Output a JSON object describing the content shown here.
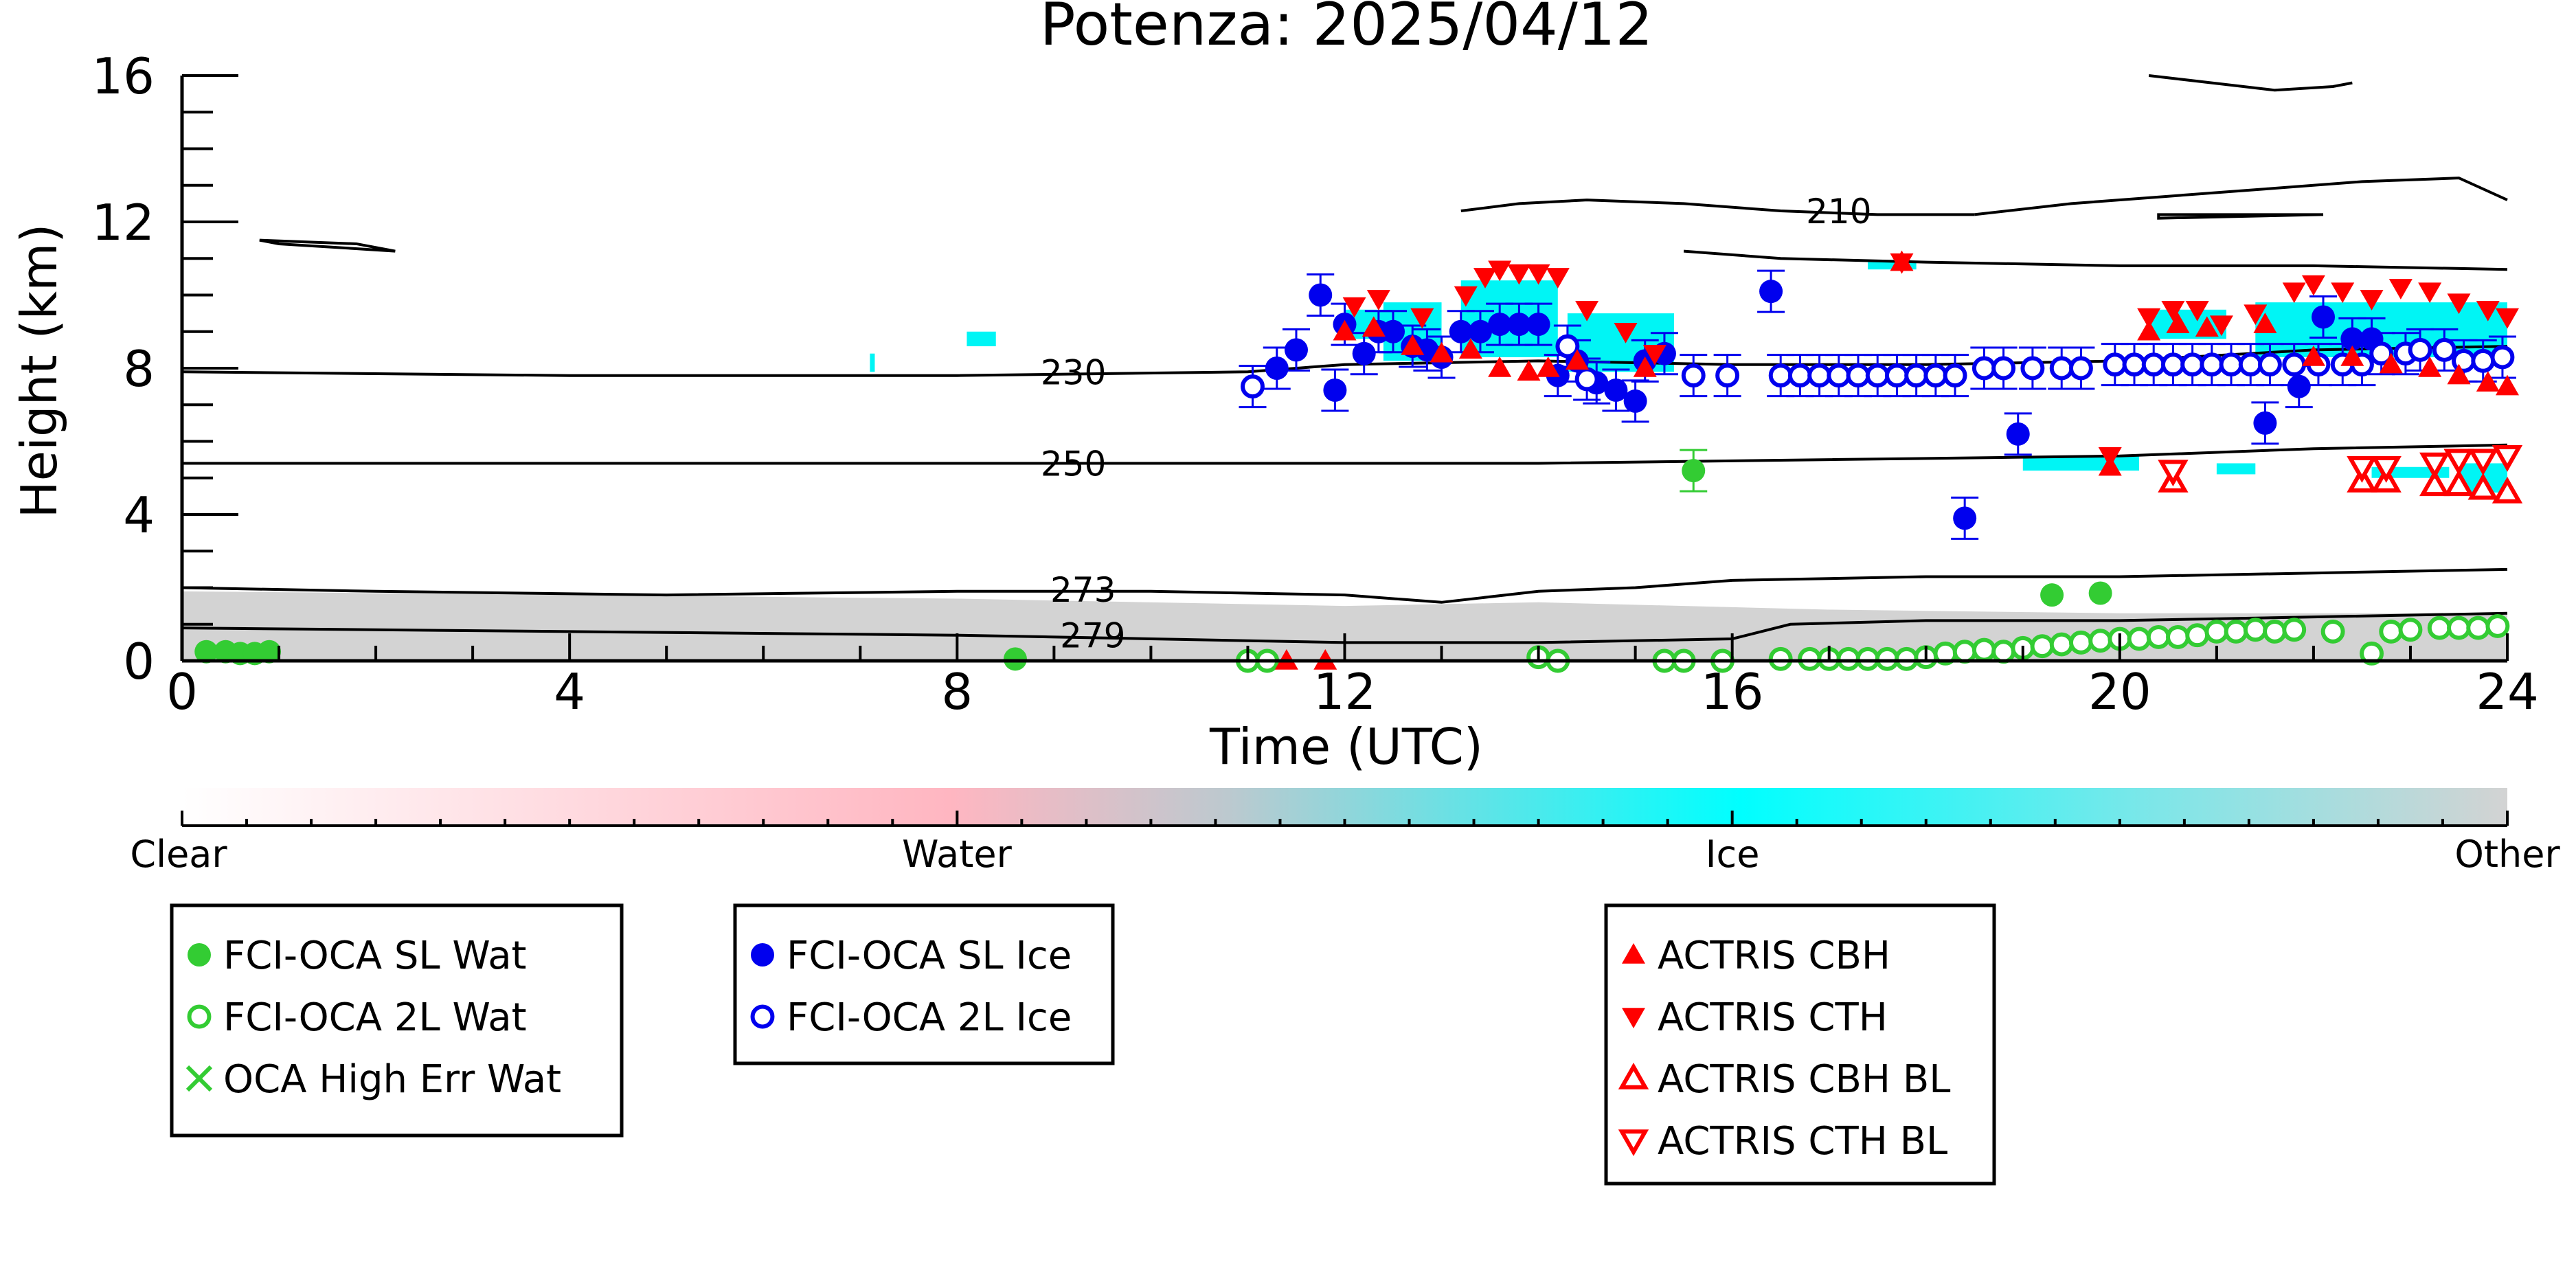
{
  "chart_data": {
    "type": "scatter",
    "title": "Potenza: 2025/04/12",
    "xlabel": "Time (UTC)",
    "ylabel": "Height (km)",
    "xlim": [
      0,
      24
    ],
    "ylim": [
      0,
      16
    ],
    "xticks": [
      0,
      4,
      8,
      12,
      16,
      20,
      24
    ],
    "yticks": [
      0,
      4,
      8,
      12,
      16
    ],
    "colorbar": {
      "labels": [
        "Clear",
        "Water",
        "Ice",
        "Other"
      ],
      "colors": [
        "#ffffff",
        "#ffb6c1",
        "#00ffff",
        "#d3d3d3"
      ]
    },
    "contours": [
      {
        "label": "210",
        "points": [
          [
            18.5,
            12.2
          ],
          [
            19.5,
            12.5
          ],
          [
            20.5,
            12.7
          ],
          [
            21.5,
            12.9
          ],
          [
            22.5,
            13.1
          ],
          [
            23.5,
            13.2
          ],
          [
            24,
            12.6
          ]
        ]
      },
      {
        "label": "210",
        "points": [
          [
            13.2,
            12.3
          ],
          [
            13.8,
            12.5
          ],
          [
            14.5,
            12.6
          ],
          [
            15.5,
            12.5
          ],
          [
            16.5,
            12.3
          ],
          [
            17.5,
            12.2
          ],
          [
            18.5,
            12.2
          ]
        ]
      },
      {
        "label": "",
        "points": [
          [
            15.5,
            11.2
          ],
          [
            16.5,
            11.0
          ],
          [
            18,
            10.9
          ],
          [
            20,
            10.8
          ],
          [
            22,
            10.8
          ],
          [
            24,
            10.7
          ]
        ]
      },
      {
        "label": "230",
        "points": [
          [
            0,
            7.9
          ],
          [
            4,
            7.8
          ],
          [
            8,
            7.8
          ],
          [
            11,
            7.9
          ],
          [
            12,
            8.1
          ],
          [
            14,
            8.2
          ],
          [
            16,
            8.1
          ],
          [
            18,
            8.1
          ],
          [
            20,
            8.2
          ],
          [
            22,
            8.5
          ],
          [
            24,
            8.6
          ]
        ]
      },
      {
        "label": "250",
        "points": [
          [
            0,
            5.4
          ],
          [
            4,
            5.4
          ],
          [
            8,
            5.4
          ],
          [
            11,
            5.4
          ],
          [
            14,
            5.4
          ],
          [
            17,
            5.5
          ],
          [
            20,
            5.6
          ],
          [
            22,
            5.8
          ],
          [
            24,
            5.9
          ]
        ]
      },
      {
        "label": "273",
        "points": [
          [
            0,
            2.0
          ],
          [
            2,
            1.9
          ],
          [
            5,
            1.8
          ],
          [
            8,
            1.9
          ],
          [
            10,
            1.9
          ],
          [
            12,
            1.8
          ],
          [
            13,
            1.6
          ],
          [
            14,
            1.9
          ],
          [
            15,
            2.0
          ],
          [
            16,
            2.2
          ],
          [
            18,
            2.3
          ],
          [
            20,
            2.3
          ],
          [
            22,
            2.4
          ],
          [
            24,
            2.5
          ]
        ]
      },
      {
        "label": "279",
        "points": [
          [
            0,
            0.9
          ],
          [
            4,
            0.8
          ],
          [
            8,
            0.7
          ],
          [
            10,
            0.6
          ],
          [
            12,
            0.5
          ],
          [
            14,
            0.5
          ],
          [
            16,
            0.6
          ],
          [
            16.6,
            1.0
          ],
          [
            18,
            1.1
          ],
          [
            20,
            1.1
          ],
          [
            22,
            1.2
          ],
          [
            24,
            1.3
          ]
        ]
      }
    ],
    "series": [
      {
        "name": "FCI-OCA SL Wat",
        "marker": "filled-circle",
        "color": "#33cc33",
        "x": [
          0.25,
          0.45,
          0.6,
          0.75,
          0.9,
          8.6,
          15.6,
          19.3,
          19.8
        ],
        "y": [
          0.25,
          0.25,
          0.2,
          0.2,
          0.25,
          0.05,
          5.2,
          1.8,
          1.85
        ]
      },
      {
        "name": "FCI-OCA 2L Wat",
        "marker": "open-circle",
        "color": "#33cc33",
        "x": [
          11.0,
          11.2,
          14.0,
          14.2,
          15.3,
          15.5,
          15.9,
          16.5,
          16.8,
          17.0,
          17.2,
          17.4,
          17.6,
          17.8,
          18.0,
          18.2,
          18.4,
          18.6,
          18.8,
          19.0,
          19.2,
          19.4,
          19.6,
          19.8,
          20.0,
          20.2,
          20.4,
          20.6,
          20.8,
          21.0,
          21.2,
          21.4,
          21.6,
          21.8,
          22.2,
          22.6,
          22.8,
          23.0,
          23.3,
          23.5,
          23.7,
          23.9
        ],
        "y": [
          0.0,
          0.0,
          0.1,
          0.0,
          0.0,
          0.0,
          0.0,
          0.05,
          0.05,
          0.05,
          0.05,
          0.05,
          0.05,
          0.05,
          0.1,
          0.2,
          0.25,
          0.3,
          0.25,
          0.35,
          0.4,
          0.45,
          0.5,
          0.55,
          0.6,
          0.6,
          0.65,
          0.65,
          0.7,
          0.8,
          0.8,
          0.85,
          0.8,
          0.85,
          0.8,
          0.2,
          0.8,
          0.85,
          0.9,
          0.9,
          0.9,
          0.95
        ]
      },
      {
        "name": "FCI-OCA SL Ice",
        "marker": "filled-circle",
        "color": "#0000ee",
        "x": [
          11.3,
          11.5,
          11.75,
          11.9,
          12.0,
          12.2,
          12.35,
          12.5,
          12.7,
          12.85,
          13.0,
          13.2,
          13.4,
          13.6,
          13.8,
          14.0,
          14.2,
          14.4,
          14.6,
          14.8,
          15.0,
          15.1,
          15.3,
          16.4,
          18.4,
          18.95,
          21.5,
          21.85,
          22.1,
          22.4,
          22.6
        ],
        "y": [
          8.0,
          8.5,
          10.0,
          7.4,
          9.2,
          8.4,
          9.0,
          9.0,
          8.6,
          8.5,
          8.3,
          9.0,
          9.0,
          9.2,
          9.2,
          9.2,
          7.8,
          8.2,
          7.6,
          7.4,
          7.1,
          8.2,
          8.4,
          10.1,
          3.9,
          6.2,
          6.5,
          7.5,
          9.4,
          8.8,
          8.8
        ]
      },
      {
        "name": "FCI-OCA 2L Ice",
        "marker": "open-circle",
        "color": "#0000ee",
        "x": [
          11.05,
          14.3,
          14.5,
          15.6,
          15.95,
          16.5,
          16.7,
          16.9,
          17.1,
          17.3,
          17.5,
          17.7,
          17.9,
          18.1,
          18.3,
          18.6,
          18.8,
          19.1,
          19.4,
          19.6,
          19.95,
          20.15,
          20.35,
          20.55,
          20.75,
          20.95,
          21.15,
          21.35,
          21.55,
          21.8,
          22.05,
          22.3,
          22.5,
          22.7,
          22.95,
          23.1,
          23.35,
          23.55,
          23.75,
          23.95
        ],
        "y": [
          7.5,
          8.6,
          7.7,
          7.8,
          7.8,
          7.8,
          7.8,
          7.8,
          7.8,
          7.8,
          7.8,
          7.8,
          7.8,
          7.8,
          7.8,
          8.0,
          8.0,
          8.0,
          8.0,
          8.0,
          8.1,
          8.1,
          8.1,
          8.1,
          8.1,
          8.1,
          8.1,
          8.1,
          8.1,
          8.1,
          8.1,
          8.1,
          8.1,
          8.4,
          8.4,
          8.5,
          8.5,
          8.2,
          8.2,
          8.3
        ]
      },
      {
        "name": "ACTRIS CBH",
        "marker": "filled-triangle-up",
        "color": "#ff0000",
        "x": [
          11.4,
          11.8,
          12.0,
          12.3,
          12.7,
          13.0,
          13.3,
          13.6,
          13.9,
          14.1,
          14.4,
          15.1,
          17.75,
          19.9,
          20.3,
          20.6,
          20.9,
          21.5,
          22.0,
          22.4,
          22.8,
          23.2,
          23.5,
          23.8,
          24.0
        ],
        "y": [
          0.0,
          0.0,
          9.0,
          9.1,
          8.6,
          8.4,
          8.5,
          8.0,
          7.9,
          8.0,
          8.2,
          8.0,
          10.9,
          5.3,
          9.0,
          9.2,
          9.1,
          9.2,
          8.3,
          8.3,
          8.1,
          8.0,
          7.8,
          7.6,
          7.5
        ]
      },
      {
        "name": "ACTRIS CTH",
        "marker": "filled-triangle-down",
        "color": "#ff0000",
        "x": [
          12.1,
          12.35,
          12.8,
          13.25,
          13.45,
          13.6,
          13.8,
          14.0,
          14.2,
          14.5,
          14.9,
          15.2,
          17.75,
          19.9,
          20.3,
          20.55,
          20.8,
          21.05,
          21.4,
          21.8,
          22.0,
          22.3,
          22.6,
          22.9,
          23.2,
          23.5,
          23.8,
          24.0
        ],
        "y": [
          9.7,
          9.9,
          9.4,
          10.0,
          10.5,
          10.7,
          10.6,
          10.6,
          10.5,
          9.6,
          9.0,
          8.4,
          10.9,
          5.6,
          9.4,
          9.6,
          9.6,
          9.2,
          9.5,
          10.1,
          10.3,
          10.1,
          9.9,
          10.2,
          10.1,
          9.8,
          9.6,
          9.4
        ]
      },
      {
        "name": "ACTRIS CBH BL",
        "marker": "open-triangle-up",
        "color": "#ff0000",
        "x": [
          20.55,
          22.5,
          22.75,
          23.25,
          23.5,
          23.75,
          24.0
        ],
        "y": [
          4.9,
          4.9,
          4.9,
          4.8,
          4.8,
          4.7,
          4.6
        ]
      },
      {
        "name": "ACTRIS CTH BL",
        "marker": "open-triangle-down",
        "color": "#ff0000",
        "x": [
          20.55,
          22.5,
          22.75,
          23.25,
          23.5,
          23.75,
          24.0
        ],
        "y": [
          5.2,
          5.3,
          5.3,
          5.4,
          5.5,
          5.5,
          5.6
        ]
      },
      {
        "name": "OCA High Err Wat",
        "marker": "x",
        "color": "#33cc33",
        "x": [],
        "y": []
      }
    ],
    "legends": [
      [
        "FCI-OCA SL Wat",
        "FCI-OCA 2L Wat",
        "OCA High Err Wat"
      ],
      [
        "FCI-OCA SL Ice",
        "FCI-OCA 2L Ice"
      ],
      [
        "ACTRIS CBH",
        "ACTRIS CTH",
        "ACTRIS CBH BL",
        "ACTRIS CTH BL"
      ]
    ]
  }
}
